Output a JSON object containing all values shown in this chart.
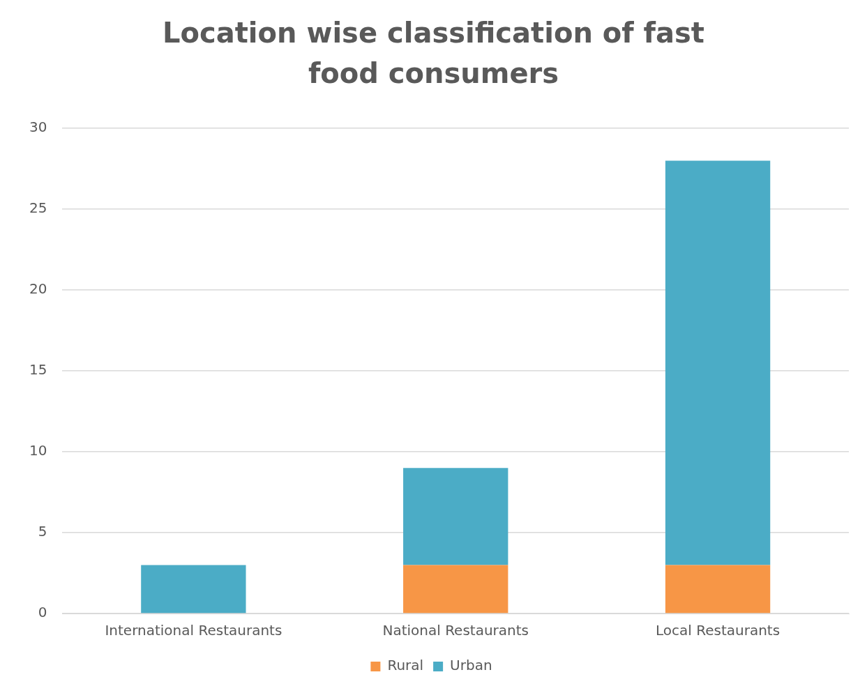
{
  "chart_data": {
    "type": "bar",
    "title": "Location wise classification of fast food consumers",
    "categories": [
      "International Restaurants",
      "National Restaurants",
      "Local Restaurants"
    ],
    "series": [
      {
        "name": "Rural",
        "color": "#f79646",
        "values": [
          0,
          3,
          3
        ]
      },
      {
        "name": "Urban",
        "color": "#4bacc6",
        "values": [
          3,
          6,
          25
        ]
      }
    ],
    "stacked": true,
    "ylim": [
      0,
      30
    ],
    "yticks": [
      0,
      5,
      10,
      15,
      20,
      25,
      30
    ],
    "grid": "y",
    "legend": "bottom"
  }
}
